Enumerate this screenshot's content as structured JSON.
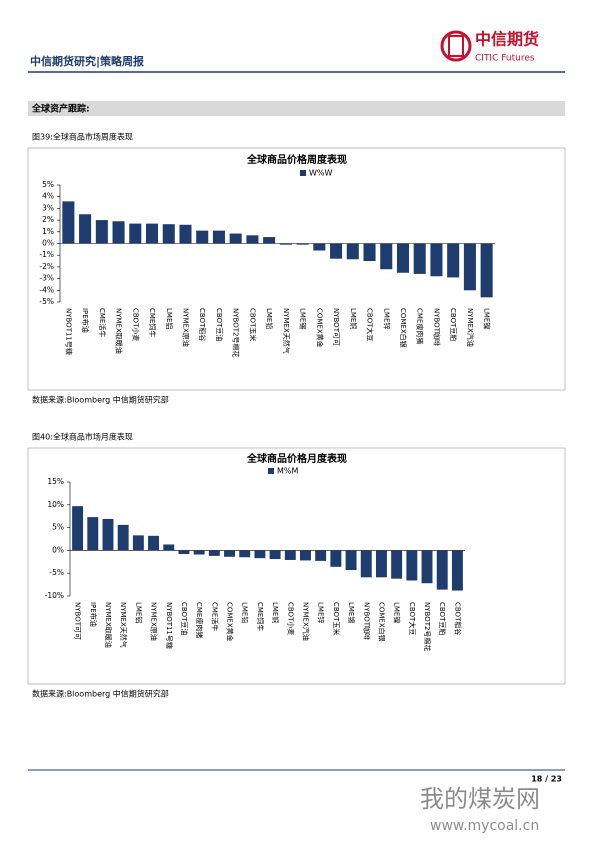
{
  "header": {
    "report_title": "中信期货研究|策略周报",
    "logo_cn": "中信期货",
    "logo_en": "CITIC Futures"
  },
  "section": "全球资产跟踪:",
  "figures": [
    {
      "caption": "图39:全球商品市场周度表现",
      "source": "数据来源:Bloomberg  中信期货研究部"
    },
    {
      "caption": "图40:全球商品市场月度表现",
      "source": "数据来源:Bloomberg  中信期货研究部"
    }
  ],
  "chart_data": [
    {
      "type": "bar",
      "title": "全球商品价格周度表现",
      "color": "#1f3c6e",
      "categories": [
        "NYBOT11号糖",
        "IPE布油",
        "CME活牛",
        "NYMEX取暖油",
        "CBOT小麦",
        "CME饲牛",
        "LME铝",
        "NYMEX原油",
        "CBOT稻谷",
        "CBOT豆油",
        "NYBOT2号棉花",
        "CBOT玉米",
        "LME铅",
        "NYMEX天然气",
        "LME锡",
        "COMEX黄金",
        "NYBOT可可",
        "LME铜",
        "CBOT大豆",
        "LME锌",
        "COMEX白银",
        "CME瘦肉猪",
        "NYBOT咖啡",
        "CBOT豆粕",
        "NYMEX汽油",
        "LME镍"
      ],
      "series": [
        {
          "name": "W%W",
          "color": "#1f3c6e",
          "values": [
            3.6,
            2.5,
            2.0,
            1.9,
            1.7,
            1.7,
            1.65,
            1.6,
            1.1,
            1.1,
            0.85,
            0.7,
            0.55,
            -0.1,
            -0.1,
            -0.6,
            -1.3,
            -1.35,
            -1.5,
            -2.2,
            -2.5,
            -2.6,
            -2.8,
            -2.9,
            -4.0,
            -4.6
          ]
        }
      ],
      "ylim": [
        -5,
        5
      ],
      "yticks": [
        {
          "value": 5,
          "label": "5%"
        },
        {
          "value": 4,
          "label": "4%"
        },
        {
          "value": 3,
          "label": "3%"
        },
        {
          "value": 2,
          "label": "2%"
        },
        {
          "value": 1,
          "label": "1%"
        },
        {
          "value": 0,
          "label": "0%"
        },
        {
          "value": -1,
          "label": "-1%"
        },
        {
          "value": -2,
          "label": "-2%"
        },
        {
          "value": -3,
          "label": "-3%"
        },
        {
          "value": -4,
          "label": "-4%"
        },
        {
          "value": -5,
          "label": "-5%"
        }
      ],
      "grid": false
    },
    {
      "type": "bar",
      "title": "全球商品价格月度表现",
      "color": "#1f3c6e",
      "categories": [
        "NYBOT可可",
        "IPE布油",
        "NYMEX取暖油",
        "NYMEX天然气",
        "LME铝",
        "NYMEX原油",
        "NYBOT11号糖",
        "CBOT豆油",
        "CME瘦肉猪",
        "CME活牛",
        "COMEX黄金",
        "LME铅",
        "CME饲牛",
        "LME铜",
        "CBOT小麦",
        "NYMEX汽油",
        "LME锌",
        "CBOT玉米",
        "LME锡",
        "NYBOT咖啡",
        "COMEX白银",
        "LME镍",
        "CBOT大豆",
        "NYBOT2号棉花",
        "CBOT豆粕",
        "CBOT稻谷"
      ],
      "series": [
        {
          "name": "M%M",
          "color": "#1f3c6e",
          "values": [
            9.7,
            7.3,
            6.9,
            5.6,
            3.3,
            3.2,
            1.3,
            -0.8,
            -0.9,
            -1.2,
            -1.4,
            -1.5,
            -1.7,
            -1.9,
            -2.1,
            -2.2,
            -2.3,
            -3.6,
            -4.3,
            -5.9,
            -5.9,
            -6.2,
            -6.6,
            -7.2,
            -8.6,
            -8.8
          ]
        }
      ],
      "ylim": [
        -10,
        15
      ],
      "yticks": [
        {
          "value": 15,
          "label": "15%"
        },
        {
          "value": 10,
          "label": "10%"
        },
        {
          "value": 5,
          "label": "5%"
        },
        {
          "value": 0,
          "label": "0%"
        },
        {
          "value": -5,
          "label": "-5%"
        },
        {
          "value": -10,
          "label": "-10%"
        }
      ],
      "grid": false
    }
  ],
  "footer": {
    "page": "18 / 23"
  },
  "watermark": {
    "cn": "我的煤炭网",
    "url": "www.mycoal.cn"
  }
}
